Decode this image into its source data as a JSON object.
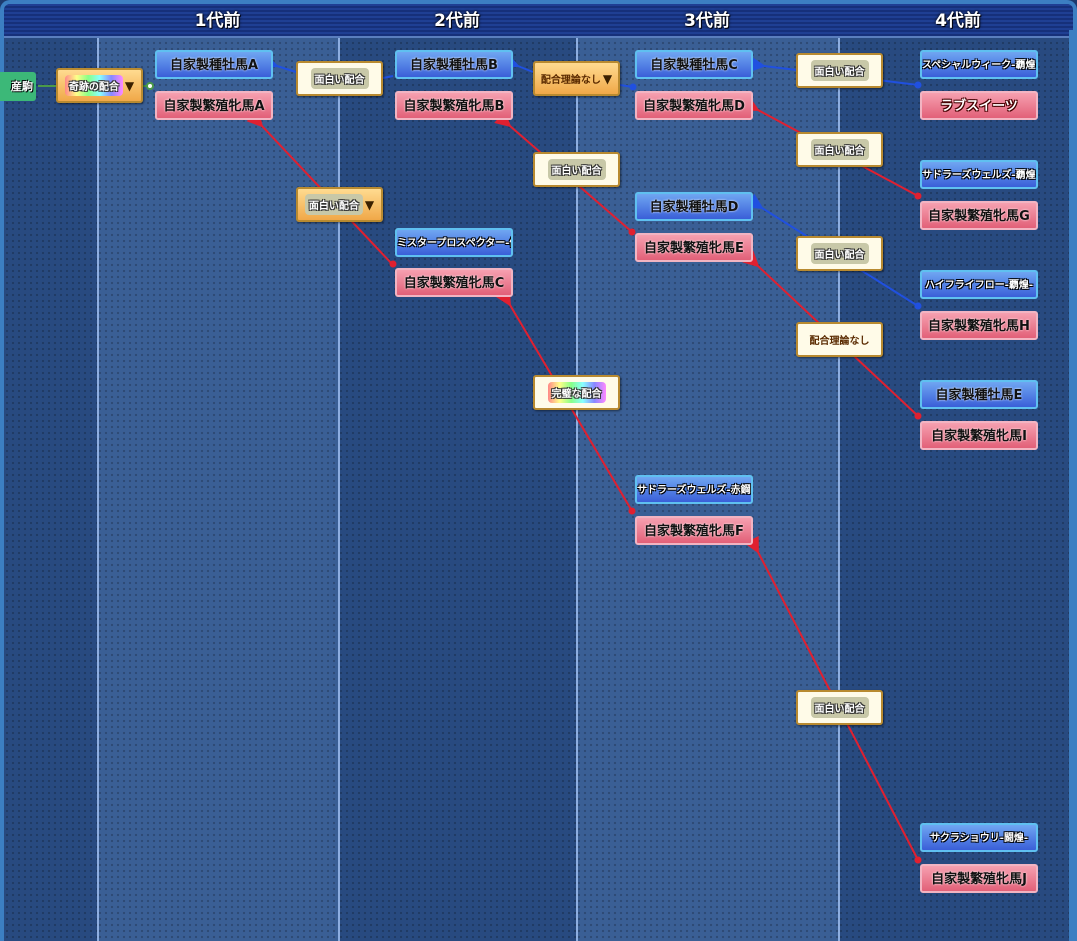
{
  "header": {
    "columns": [
      "1代前",
      "2代前",
      "3代前",
      "4代前"
    ]
  },
  "child": {
    "label": "産駒"
  },
  "theories": {
    "root": {
      "label": "奇跡の配合",
      "dropdown": true
    },
    "g1_sire": {
      "label": "面白い配合"
    },
    "g1_dam": {
      "label": "面白い配合",
      "dropdown": true
    },
    "g2_sire": {
      "label": "配合理論なし",
      "dropdown": true
    },
    "g2_dam": {
      "label": "面白い配合"
    },
    "g2_damC": {
      "label": "完璧な配合"
    },
    "g3_a": {
      "label": "面白い配合"
    },
    "g3_b": {
      "label": "面白い配合"
    },
    "g3_c": {
      "label": "面白い配合"
    },
    "g3_d": {
      "label": "配合理論なし"
    },
    "g3_e": {
      "label": "面白い配合"
    }
  },
  "gen1": {
    "sire": "自家製種牡馬A",
    "dam": "自家製繁殖牝馬A"
  },
  "gen2": {
    "sireB": "自家製種牡馬B",
    "damB": "自家製繁殖牝馬B",
    "sireC": "ミスタープロスペクター-優走-",
    "damC": "自家製繁殖牝馬C"
  },
  "gen3": {
    "sireC": "自家製種牡馬C",
    "damD": "自家製繁殖牝馬D",
    "sireD": "自家製種牡馬D",
    "damE": "自家製繁殖牝馬E",
    "sireF": "サドラーズウェルズ-赤鋼-",
    "damF": "自家製繁殖牝馬F"
  },
  "gen4": {
    "s1": "スペシャルウィーク-覇煌-",
    "d1": "ラブスイーツ",
    "s2": "サドラーズウェルズ-覇煌-",
    "d2": "自家製繁殖牝馬G",
    "s3": "ハイフライフロー-覇煌-",
    "d3": "自家製繁殖牝馬H",
    "s4": "自家製種牡馬E",
    "d4": "自家製繁殖牝馬I",
    "s5": "サクラショウリ-闘煌-",
    "d5": "自家製繁殖牝馬J"
  },
  "colors": {
    "sire_link": "#2050e0",
    "dam_link": "#e02030",
    "child_link": "#4a9a4a"
  }
}
